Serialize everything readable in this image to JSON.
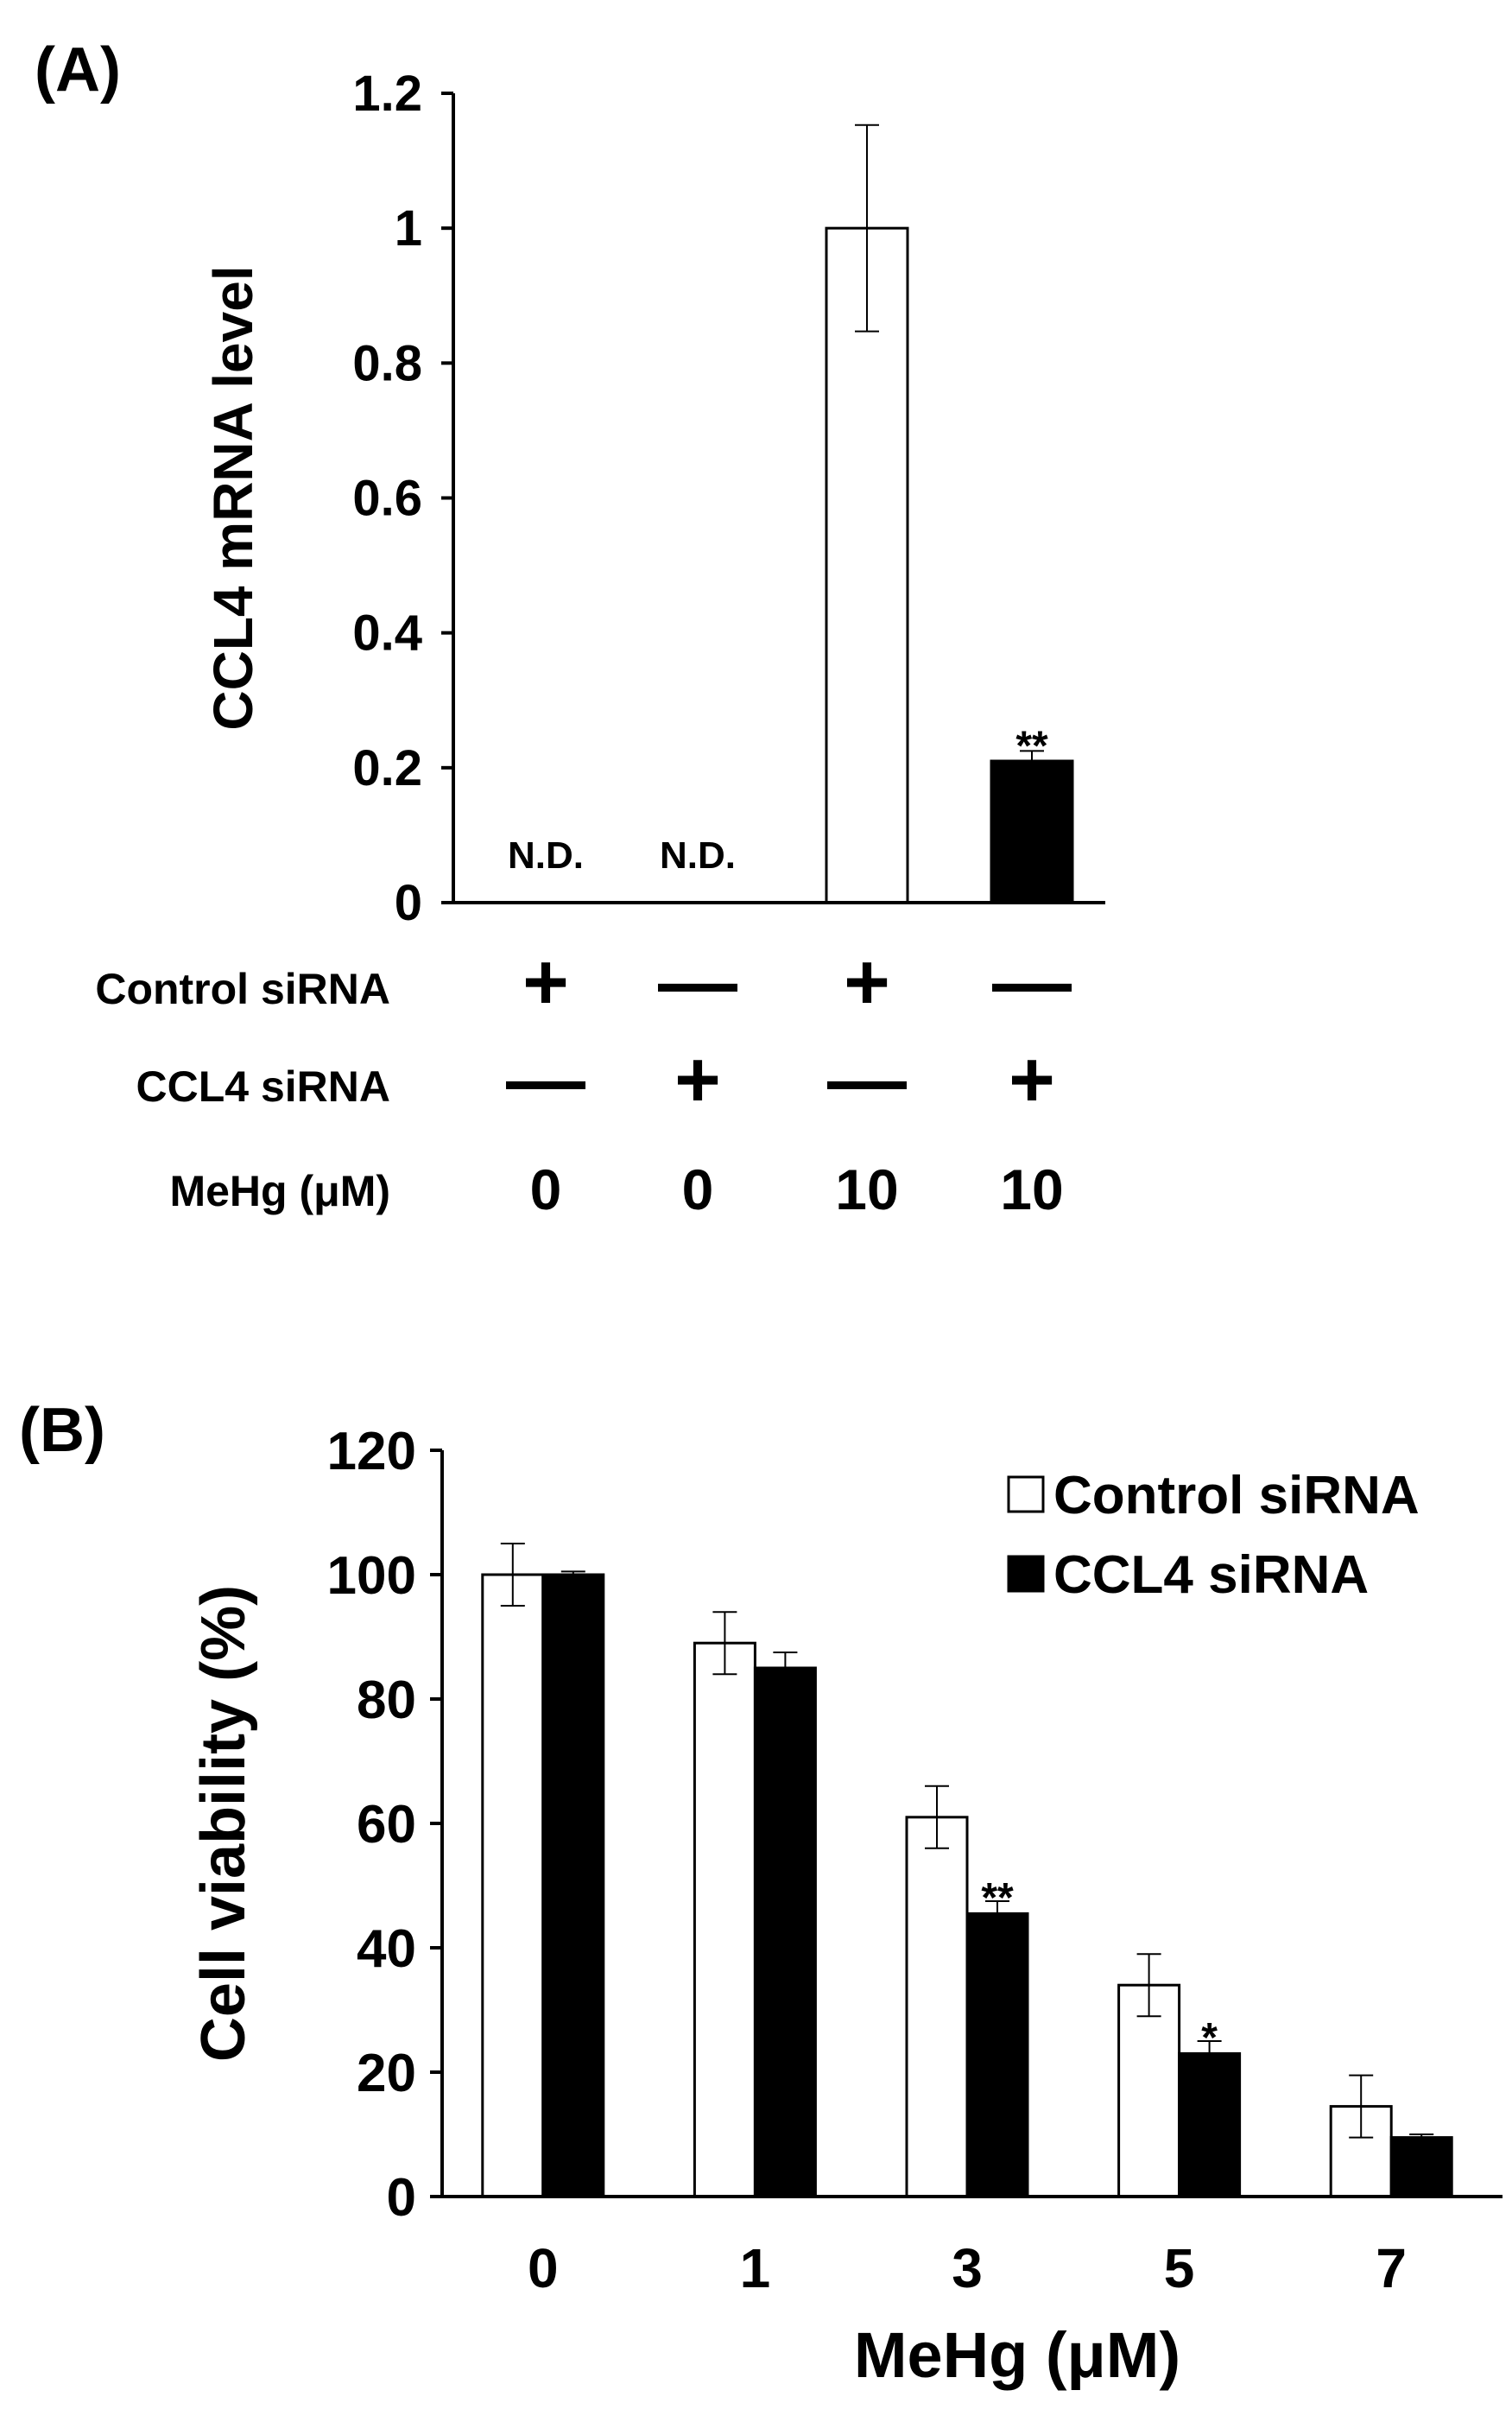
{
  "chart_data": [
    {
      "panel_label": "(A)",
      "type": "bar",
      "ylabel": "CCL4 mRNA level",
      "ylim": [
        0,
        1.2
      ],
      "yticks": [
        "0",
        "0.2",
        "0.4",
        "0.6",
        "0.8",
        "1",
        "1.2"
      ],
      "values": [
        null,
        null,
        1.0,
        0.21
      ],
      "errors": [
        null,
        null,
        0.153,
        0.015
      ],
      "fills": [
        "",
        "",
        "#ffffff",
        "#000000"
      ],
      "bar_labels": [
        "N.D.",
        "N.D.",
        "",
        "**"
      ],
      "conditions": [
        {
          "label": "Control siRNA",
          "values": [
            "+",
            "—",
            "+",
            "—"
          ]
        },
        {
          "label": "CCL4 siRNA",
          "values": [
            "—",
            "+",
            "—",
            "+"
          ]
        },
        {
          "label": "MeHg (μM)",
          "values": [
            "0",
            "0",
            "10",
            "10"
          ]
        }
      ]
    },
    {
      "panel_label": "(B)",
      "type": "bar",
      "xlabel": "MeHg (μM)",
      "ylabel": "Cell viability (%)",
      "ylim": [
        0,
        120
      ],
      "yticks": [
        "0",
        "20",
        "40",
        "60",
        "80",
        "100",
        "120"
      ],
      "categories": [
        "0",
        "1",
        "3",
        "5",
        "7"
      ],
      "legend_position": "top-right",
      "series": [
        {
          "name": "Control siRNA",
          "color": "#ffffff",
          "values": [
            100,
            89,
            61,
            34,
            14.5
          ],
          "errors": [
            5,
            5,
            5,
            5,
            5
          ],
          "labels": [
            "",
            "",
            "",
            "",
            ""
          ]
        },
        {
          "name": "CCL4 siRNA",
          "color": "#000000",
          "values": [
            100,
            85,
            45.5,
            23,
            9.5
          ],
          "errors": [
            0.5,
            2.5,
            2,
            2,
            0.5
          ],
          "labels": [
            "",
            "",
            "**",
            "*",
            ""
          ]
        }
      ]
    }
  ]
}
